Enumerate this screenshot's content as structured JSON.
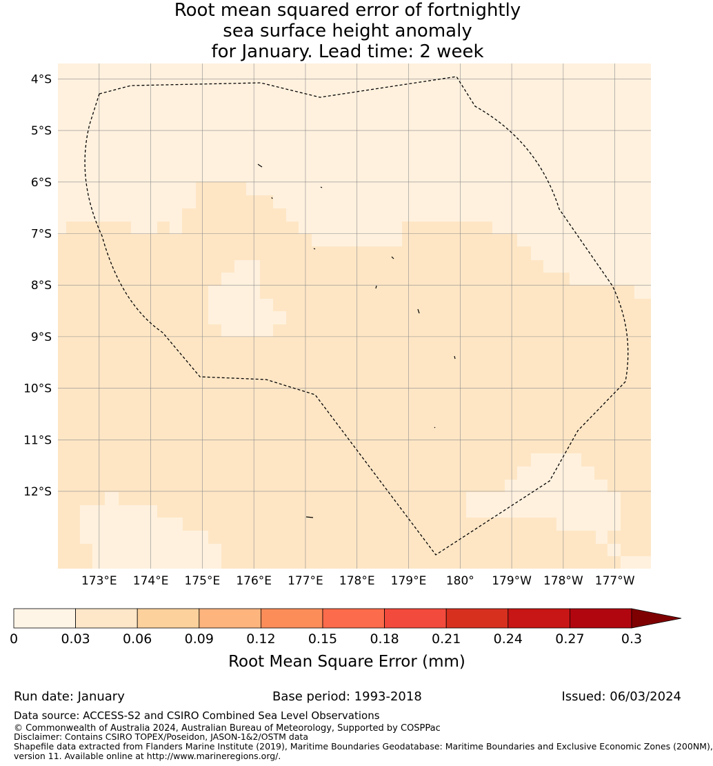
{
  "title": {
    "line1": "Root mean squared error of fortnightly",
    "line2": "sea surface height anomaly",
    "line3": "for January. Lead time: 2 week"
  },
  "map": {
    "lon_ticks": [
      "173°E",
      "174°E",
      "175°E",
      "176°E",
      "177°E",
      "178°E",
      "179°E",
      "180°",
      "179°W",
      "178°W",
      "177°W"
    ],
    "lat_ticks": [
      "4°S",
      "5°S",
      "6°S",
      "7°S",
      "8°S",
      "9°S",
      "10°S",
      "11°S",
      "12°S"
    ],
    "lon_range": [
      172.2,
      183.7
    ],
    "lat_range": [
      -13.5,
      -3.7
    ],
    "grid": true,
    "boundary": "dashed",
    "cell_colors": {
      "0": "#fff1de",
      "1": "#fee6c5"
    }
  },
  "colorbar": {
    "ticks": [
      "0",
      "0.03",
      "0.06",
      "0.09",
      "0.12",
      "0.15",
      "0.18",
      "0.21",
      "0.24",
      "0.27",
      "0.3"
    ],
    "colors": [
      "#fff5e6",
      "#fee6c8",
      "#fdd19c",
      "#fdb47d",
      "#fc8d59",
      "#fc6b4b",
      "#f24a3c",
      "#d7301f",
      "#c81515",
      "#b10610"
    ],
    "extend_color": "#7f0000",
    "label": "Root Mean Square Error (mm)"
  },
  "footer": {
    "run_date": "Run date: January",
    "base_period": "Base period: 1993-2018",
    "issued": "Issued: 06/03/2024",
    "data_source": "Data source: ACCESS-S2 and CSIRO Combined Sea Level Observations",
    "copyright": "© Commonwealth of Australia 2024, Australian Bureau of Meteorology, Supported by COSPPac",
    "disclaimer": "Disclaimer: Contains CSIRO TOPEX/Poseidon, JASON-1&2/OSTM data",
    "shapefile1": "Shapefile data extracted from Flanders Marine Institute (2019), Maritime Boundaries Geodatabase: Maritime Boundaries and Exclusive Economic Zones (200NM),",
    "shapefile2": "version 11. Available online at http://www.marineregions.org/."
  }
}
